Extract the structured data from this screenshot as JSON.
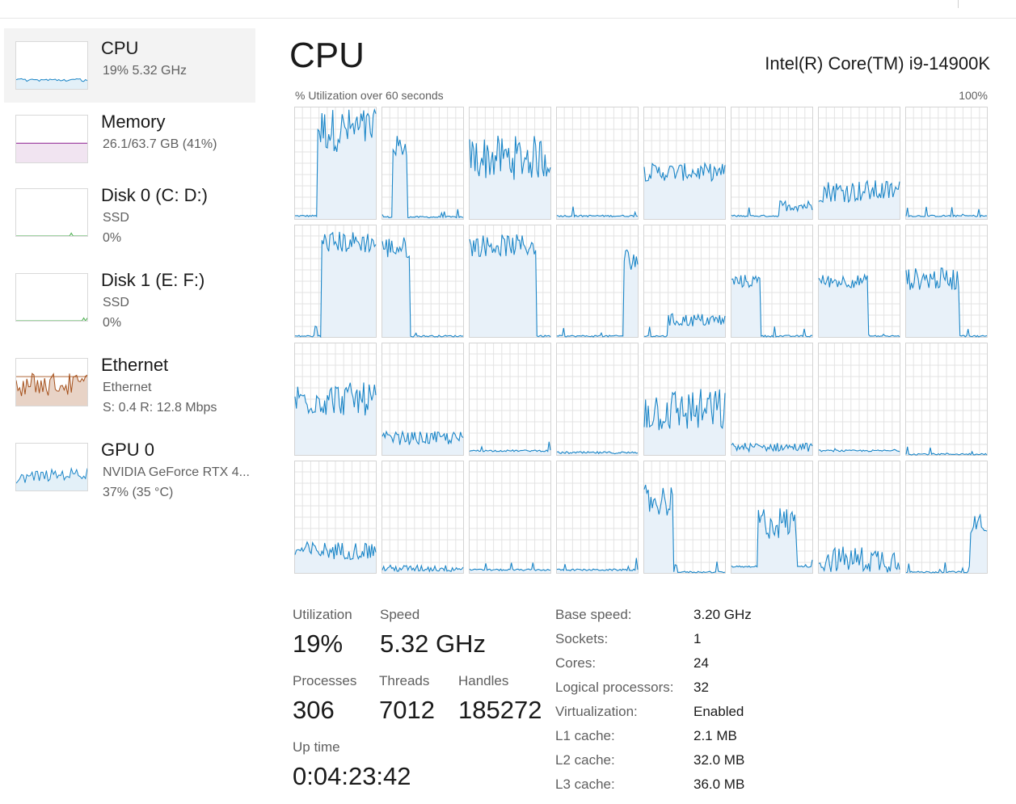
{
  "sidebar": {
    "items": [
      {
        "title": "CPU",
        "subtitle": "19%  5.32 GHz",
        "subtitle2": "",
        "color": "#1a85c7"
      },
      {
        "title": "Memory",
        "subtitle": "26.1/63.7 GB (41%)",
        "subtitle2": "",
        "color": "#8a1d8f"
      },
      {
        "title": "Disk 0 (C: D:)",
        "subtitle": "SSD",
        "subtitle2": "0%",
        "color": "#4caf50"
      },
      {
        "title": "Disk 1 (E: F:)",
        "subtitle": "SSD",
        "subtitle2": "0%",
        "color": "#4caf50"
      },
      {
        "title": "Ethernet",
        "subtitle": "Ethernet",
        "subtitle2": "S: 0.4  R: 12.8 Mbps",
        "color": "#a5501b"
      },
      {
        "title": "GPU 0",
        "subtitle": "NVIDIA GeForce RTX 4...",
        "subtitle2": "37%  (35 °C)",
        "color": "#1a85c7"
      }
    ]
  },
  "main": {
    "title": "CPU",
    "model": "Intel(R) Core(TM) i9-14900K",
    "graph_label": "% Utilization over 60 seconds",
    "graph_max": "100%",
    "core_count": 32,
    "line_color": "#1a85c7",
    "fill_color": "#e8f1f9",
    "grid_color": "#e3e3e3"
  },
  "stats": {
    "utilization_label": "Utilization",
    "utilization_value": "19%",
    "speed_label": "Speed",
    "speed_value": "5.32 GHz",
    "processes_label": "Processes",
    "processes_value": "306",
    "threads_label": "Threads",
    "threads_value": "7012",
    "handles_label": "Handles",
    "handles_value": "185272",
    "uptime_label": "Up time",
    "uptime_value": "0:04:23:42"
  },
  "info": [
    {
      "label": "Base speed:",
      "value": "3.20 GHz"
    },
    {
      "label": "Sockets:",
      "value": "1"
    },
    {
      "label": "Cores:",
      "value": "24"
    },
    {
      "label": "Logical processors:",
      "value": "32"
    },
    {
      "label": "Virtualization:",
      "value": "Enabled"
    },
    {
      "label": "L1 cache:",
      "value": "2.1 MB"
    },
    {
      "label": "L2 cache:",
      "value": "32.0 MB"
    },
    {
      "label": "L3 cache:",
      "value": "36.0 MB"
    }
  ]
}
